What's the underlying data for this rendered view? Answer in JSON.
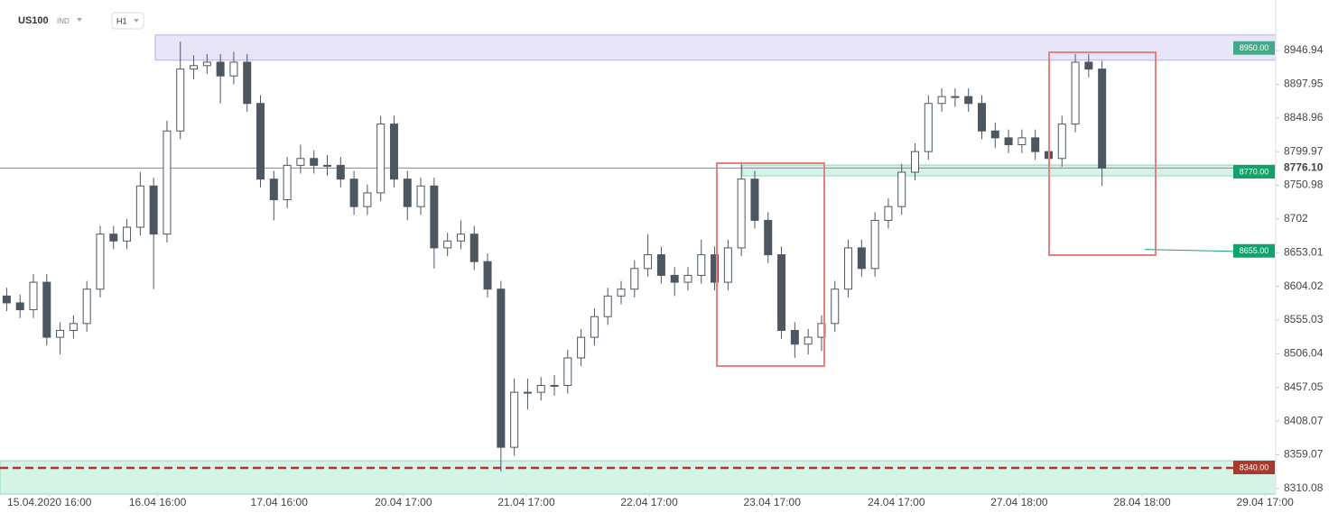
{
  "chart_data": {
    "type": "candlestick",
    "symbol": "US100",
    "market": "IND",
    "timeframe": "H1",
    "x": [
      0,
      1,
      2,
      3,
      4,
      5,
      6,
      7,
      8,
      9,
      10,
      11,
      12,
      13,
      14,
      15,
      16,
      17,
      18,
      19,
      20,
      21,
      22,
      23,
      24,
      25,
      26,
      27,
      28,
      29,
      30,
      31,
      32,
      33,
      34,
      35,
      36,
      37,
      38,
      39,
      40,
      41,
      42,
      43,
      44,
      45,
      46,
      47,
      48,
      49,
      50,
      51,
      52,
      53,
      54,
      55,
      56,
      57,
      58,
      59,
      60,
      61,
      62,
      63,
      64,
      65,
      66,
      67,
      68,
      69,
      70,
      71,
      72,
      73,
      74,
      75,
      76,
      77,
      78,
      79,
      80,
      81,
      82
    ],
    "open": [
      8590,
      8580,
      8570,
      8610,
      8530,
      8540,
      8550,
      8600,
      8680,
      8670,
      8690,
      8750,
      8680,
      8830,
      8920,
      8925,
      8930,
      8910,
      8930,
      8870,
      8760,
      8730,
      8780,
      8790,
      8780,
      8780,
      8760,
      8720,
      8740,
      8840,
      8760,
      8720,
      8750,
      8660,
      8670,
      8680,
      8640,
      8600,
      8370,
      8450,
      8450,
      8460,
      8460,
      8500,
      8530,
      8560,
      8590,
      8600,
      8630,
      8650,
      8620,
      8610,
      8620,
      8650,
      8610,
      8660,
      8760,
      8700,
      8650,
      8540,
      8520,
      8530,
      8550,
      8600,
      8660,
      8630,
      8700,
      8720,
      8770,
      8800,
      8870,
      8880,
      8880,
      8870,
      8830,
      8820,
      8810,
      8820,
      8800,
      8790,
      8840,
      8930,
      8920
    ],
    "high": [
      8602,
      8592,
      8622,
      8622,
      8552,
      8562,
      8612,
      8692,
      8692,
      8702,
      8770,
      8762,
      8845,
      8960,
      8940,
      8942,
      8942,
      8945,
      8942,
      8882,
      8772,
      8792,
      8810,
      8802,
      8795,
      8792,
      8772,
      8752,
      8852,
      8852,
      8772,
      8762,
      8762,
      8682,
      8700,
      8692,
      8652,
      8612,
      8470,
      8470,
      8472,
      8475,
      8512,
      8542,
      8572,
      8602,
      8612,
      8642,
      8680,
      8662,
      8632,
      8632,
      8672,
      8662,
      8672,
      8785,
      8772,
      8712,
      8662,
      8552,
      8542,
      8562,
      8612,
      8672,
      8672,
      8712,
      8732,
      8782,
      8812,
      8882,
      8892,
      8892,
      8892,
      8882,
      8842,
      8832,
      8832,
      8832,
      8812,
      8852,
      8942,
      8942,
      8932
    ],
    "low": [
      8568,
      8558,
      8558,
      8518,
      8505,
      8528,
      8538,
      8588,
      8658,
      8658,
      8678,
      8600,
      8668,
      8818,
      8905,
      8913,
      8870,
      8898,
      8858,
      8748,
      8700,
      8718,
      8768,
      8768,
      8765,
      8748,
      8708,
      8708,
      8728,
      8748,
      8700,
      8708,
      8630,
      8648,
      8658,
      8628,
      8588,
      8335,
      8358,
      8425,
      8438,
      8445,
      8448,
      8488,
      8518,
      8548,
      8578,
      8588,
      8618,
      8608,
      8590,
      8598,
      8608,
      8598,
      8598,
      8648,
      8688,
      8638,
      8528,
      8500,
      8505,
      8510,
      8538,
      8588,
      8618,
      8618,
      8688,
      8708,
      8758,
      8788,
      8858,
      8865,
      8858,
      8818,
      8805,
      8798,
      8798,
      8788,
      8778,
      8778,
      8828,
      8908,
      8750
    ],
    "close": [
      8580,
      8570,
      8610,
      8530,
      8540,
      8550,
      8600,
      8680,
      8670,
      8690,
      8750,
      8680,
      8830,
      8920,
      8925,
      8930,
      8910,
      8930,
      8870,
      8760,
      8730,
      8780,
      8790,
      8780,
      8780,
      8760,
      8720,
      8740,
      8840,
      8760,
      8720,
      8750,
      8660,
      8670,
      8680,
      8640,
      8600,
      8370,
      8450,
      8450,
      8460,
      8460,
      8500,
      8530,
      8560,
      8590,
      8600,
      8630,
      8650,
      8620,
      8610,
      8620,
      8650,
      8610,
      8660,
      8760,
      8700,
      8650,
      8540,
      8520,
      8530,
      8550,
      8600,
      8660,
      8630,
      8700,
      8720,
      8770,
      8800,
      8870,
      8880,
      8880,
      8870,
      8830,
      8820,
      8810,
      8820,
      8800,
      8790,
      8840,
      8930,
      8920,
      8776
    ],
    "xlim": [
      -0.5,
      95
    ],
    "xticks": [
      {
        "value": 3.2,
        "label": "15.04.2020 16:00"
      },
      {
        "value": 11.3,
        "label": "16.04 16:00"
      },
      {
        "value": 20.4,
        "label": "17.04 16:00"
      },
      {
        "value": 29.7,
        "label": "20.04 17:00"
      },
      {
        "value": 38.9,
        "label": "21.04 17:00"
      },
      {
        "value": 48.1,
        "label": "22.04 17:00"
      },
      {
        "value": 57.3,
        "label": "23.04 17:00"
      },
      {
        "value": 66.6,
        "label": "24.04 17:00"
      },
      {
        "value": 75.8,
        "label": "27.04 18:00"
      },
      {
        "value": 85,
        "label": "28.04 18:00"
      },
      {
        "value": 94.2,
        "label": "29.04 17:00"
      }
    ],
    "ylim": [
      8302,
      8968
    ],
    "yticks": [
      8946.94,
      8897.95,
      8848.96,
      8799.97,
      8750.98,
      8702.0,
      8653.01,
      8604.02,
      8555.03,
      8506.04,
      8457.05,
      8408.07,
      8359.07,
      8310.08
    ],
    "levels": [
      {
        "value": 8950,
        "label": "8950.00",
        "color": "#45a889"
      },
      {
        "value": 8770,
        "label": "8770.00",
        "color": "#14a06a"
      },
      {
        "value": 8655,
        "label": "8655.00",
        "color": "#0fa36e"
      },
      {
        "value": 8340,
        "label": "8340.00",
        "color": "#a9392c"
      }
    ],
    "current_price": {
      "value": 8776.1,
      "label": "8776.10"
    },
    "up_color": "#ffffff",
    "down_color": "#4d5762",
    "wick_color": "#4d5762"
  }
}
